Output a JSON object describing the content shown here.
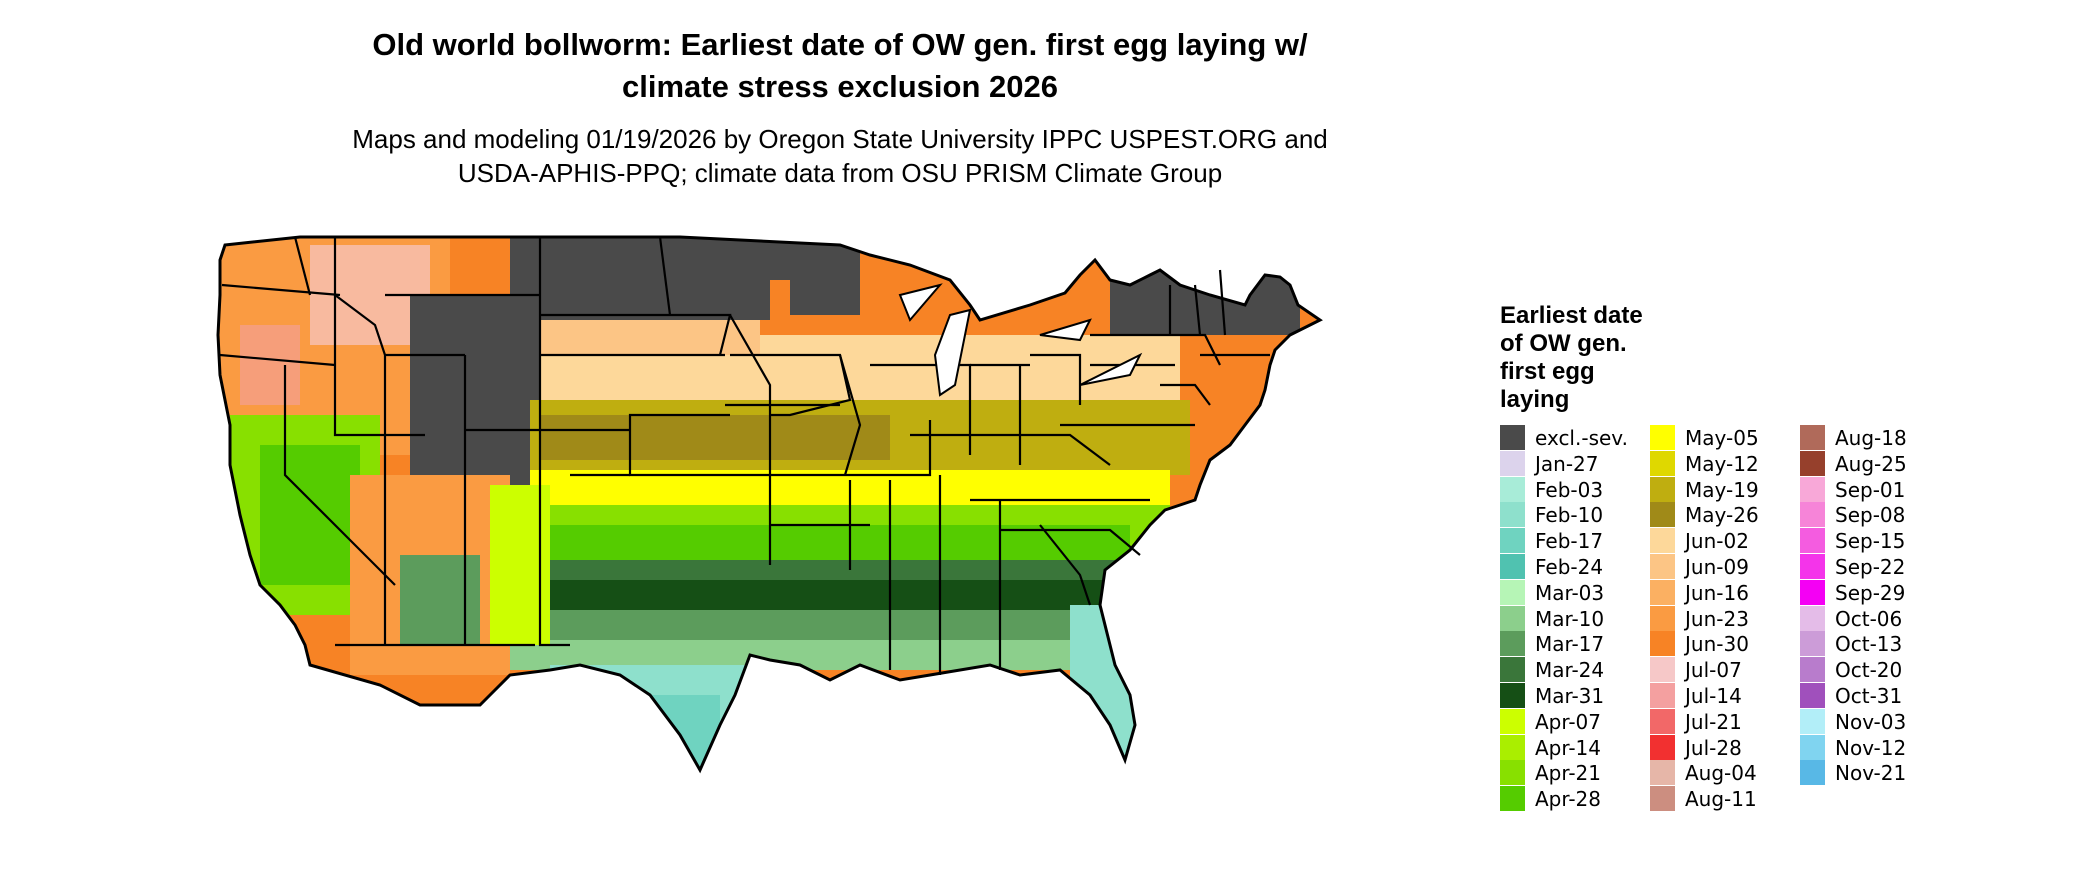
{
  "title_line1": "Old world bollworm: Earliest date of OW gen. first egg laying w/",
  "title_line2": "climate stress exclusion 2026",
  "subtitle_line1": "Maps and modeling 01/19/2026 by Oregon State University IPPC USPEST.ORG and",
  "subtitle_line2": "USDA-APHIS-PPQ; climate data from OSU PRISM Climate Group",
  "legend": {
    "title_lines": [
      "Earliest date",
      "of OW gen.",
      "first egg",
      "laying"
    ],
    "items": [
      {
        "label": "excl.-sev.",
        "color": "#4a4a4a"
      },
      {
        "label": "Jan-27",
        "color": "#dcd3ec"
      },
      {
        "label": "Feb-03",
        "color": "#a8ecd8"
      },
      {
        "label": "Feb-10",
        "color": "#8ee0cc"
      },
      {
        "label": "Feb-17",
        "color": "#6fd3c0"
      },
      {
        "label": "Feb-24",
        "color": "#50c2b0"
      },
      {
        "label": "Mar-03",
        "color": "#b6f5b6"
      },
      {
        "label": "Mar-10",
        "color": "#8ccf8c"
      },
      {
        "label": "Mar-17",
        "color": "#5c9c5c"
      },
      {
        "label": "Mar-24",
        "color": "#3a763a"
      },
      {
        "label": "Mar-31",
        "color": "#154f15"
      },
      {
        "label": "Apr-07",
        "color": "#ccff00"
      },
      {
        "label": "Apr-14",
        "color": "#aaee00"
      },
      {
        "label": "Apr-21",
        "color": "#88e000"
      },
      {
        "label": "Apr-28",
        "color": "#55cc00"
      },
      {
        "label": "May-05",
        "color": "#ffff00"
      },
      {
        "label": "May-12",
        "color": "#dfd800"
      },
      {
        "label": "May-19",
        "color": "#bfae10"
      },
      {
        "label": "May-26",
        "color": "#a08a18"
      },
      {
        "label": "Jun-02",
        "color": "#fdd89a"
      },
      {
        "label": "Jun-09",
        "color": "#fcc585"
      },
      {
        "label": "Jun-16",
        "color": "#fbb062"
      },
      {
        "label": "Jun-23",
        "color": "#fa9b42"
      },
      {
        "label": "Jun-30",
        "color": "#f78325"
      },
      {
        "label": "Jul-07",
        "color": "#f6c8c8"
      },
      {
        "label": "Jul-14",
        "color": "#f4a0a0"
      },
      {
        "label": "Jul-21",
        "color": "#f26868"
      },
      {
        "label": "Jul-28",
        "color": "#f23030"
      },
      {
        "label": "Aug-04",
        "color": "#e6b6a8"
      },
      {
        "label": "Aug-11",
        "color": "#cc8e80"
      },
      {
        "label": "Aug-18",
        "color": "#b06a5a"
      },
      {
        "label": "Aug-25",
        "color": "#96402c"
      },
      {
        "label": "Sep-01",
        "color": "#f8a8d8"
      },
      {
        "label": "Sep-08",
        "color": "#f684d8"
      },
      {
        "label": "Sep-15",
        "color": "#f45ce0"
      },
      {
        "label": "Sep-22",
        "color": "#f434ea"
      },
      {
        "label": "Sep-29",
        "color": "#f400f4"
      },
      {
        "label": "Oct-06",
        "color": "#e4bce8"
      },
      {
        "label": "Oct-13",
        "color": "#cc9cd8"
      },
      {
        "label": "Oct-20",
        "color": "#b87ccc"
      },
      {
        "label": "Oct-31",
        "color": "#a050bc"
      },
      {
        "label": "Nov-03",
        "color": "#b2eef8"
      },
      {
        "label": "Nov-12",
        "color": "#80d4f0"
      },
      {
        "label": "Nov-21",
        "color": "#58b8e6"
      }
    ]
  }
}
